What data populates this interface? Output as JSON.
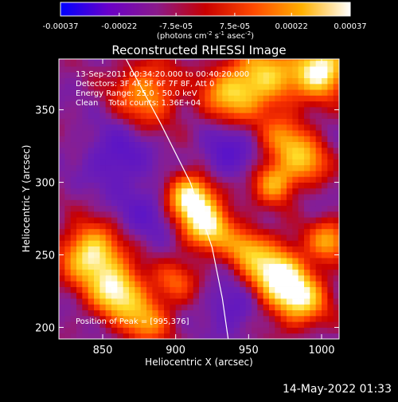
{
  "colorbar": {
    "tick_labels": [
      "-0.00037",
      "-0.00022",
      "-7.5e-05",
      "7.5e-05",
      "0.00022",
      "0.00037"
    ],
    "tick_values": [
      -0.00037,
      -0.00022,
      -7.5e-05,
      7.5e-05,
      0.00022,
      0.00037
    ],
    "range": [
      -0.00037,
      0.00037
    ],
    "unit_parts": {
      "pre": "(photons cm",
      "exp1": "-2",
      "mid": " s",
      "exp2": "-1",
      "mid2": " asec",
      "exp3": "-2",
      "post": ")"
    },
    "colors": [
      "#0000ff",
      "#6a00c8",
      "#8a1a8a",
      "#c80000",
      "#ff4a00",
      "#ffb000",
      "#ffffff"
    ]
  },
  "chart_data": {
    "type": "heatmap",
    "title": "Reconstructed RHESSI Image",
    "xlabel": "Heliocentric X (arcsec)",
    "ylabel": "Heliocentric Y (arcsec)",
    "xlim": [
      820,
      1012
    ],
    "ylim": [
      192,
      385
    ],
    "x_ticks": [
      850,
      900,
      950,
      1000
    ],
    "y_ticks": [
      200,
      250,
      300,
      350
    ],
    "info_lines": [
      "13-Sep-2011 00:34:20.000 to 00:40:20.000",
      "Detectors: 3F 4F 5F 6F 7F 8F, Att 0",
      "Energy Range: 25.0 - 50.0 keV",
      "Clean    Total counts: 1.36E+04"
    ],
    "peak_label": "Position of Peak = [995,376]",
    "peak": [
      995,
      376
    ],
    "sources": [
      {
        "x": 1000,
        "y": 378,
        "amp": 1.0,
        "s": 13
      },
      {
        "x": 960,
        "y": 372,
        "amp": 0.75,
        "s": 16
      },
      {
        "x": 935,
        "y": 360,
        "amp": 0.55,
        "s": 13
      },
      {
        "x": 880,
        "y": 362,
        "amp": 0.6,
        "s": 15
      },
      {
        "x": 910,
        "y": 290,
        "amp": 0.95,
        "s": 11
      },
      {
        "x": 922,
        "y": 270,
        "amp": 0.85,
        "s": 12
      },
      {
        "x": 968,
        "y": 300,
        "amp": 0.65,
        "s": 10
      },
      {
        "x": 990,
        "y": 315,
        "amp": 0.55,
        "s": 11
      },
      {
        "x": 975,
        "y": 330,
        "amp": 0.5,
        "s": 12
      },
      {
        "x": 842,
        "y": 250,
        "amp": 0.9,
        "s": 14
      },
      {
        "x": 860,
        "y": 225,
        "amp": 0.85,
        "s": 13
      },
      {
        "x": 880,
        "y": 205,
        "amp": 0.55,
        "s": 12
      },
      {
        "x": 968,
        "y": 238,
        "amp": 0.9,
        "s": 14
      },
      {
        "x": 985,
        "y": 220,
        "amp": 0.8,
        "s": 13
      },
      {
        "x": 948,
        "y": 255,
        "amp": 0.5,
        "s": 10
      },
      {
        "x": 1005,
        "y": 260,
        "amp": 0.6,
        "s": 10
      },
      {
        "x": 900,
        "y": 232,
        "amp": 0.4,
        "s": 10
      },
      {
        "x": 860,
        "y": 318,
        "amp": -0.35,
        "s": 14
      },
      {
        "x": 935,
        "y": 320,
        "amp": -0.35,
        "s": 12
      },
      {
        "x": 940,
        "y": 215,
        "amp": -0.3,
        "s": 12
      },
      {
        "x": 880,
        "y": 280,
        "amp": -0.25,
        "s": 14
      }
    ],
    "limb_line": [
      [
        866,
        385
      ],
      [
        890,
        340
      ],
      [
        910,
        300
      ],
      [
        925,
        255
      ],
      [
        932,
        220
      ],
      [
        936,
        192
      ]
    ]
  },
  "date_stamp": "14-May-2022 01:33"
}
